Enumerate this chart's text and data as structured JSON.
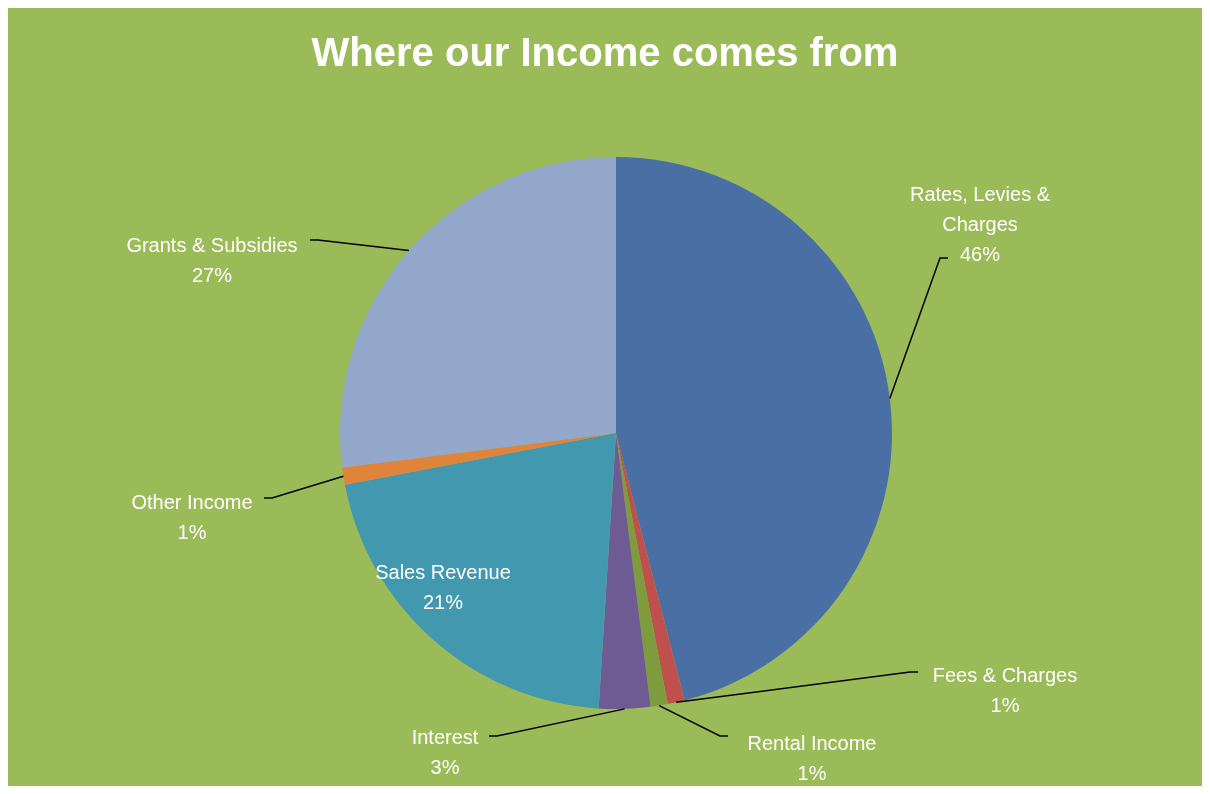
{
  "chart_data": {
    "type": "pie",
    "title": "Where our Income comes from",
    "categories": [
      "Rates, Levies & Charges",
      "Fees & Charges",
      "Rental Income",
      "Interest",
      "Sales Revenue",
      "Other Income",
      "Grants & Subsidies"
    ],
    "values": [
      46,
      1,
      1,
      3,
      21,
      1,
      27
    ],
    "value_labels": [
      "46%",
      "1%",
      "1%",
      "3%",
      "21%",
      "1%",
      "27%"
    ],
    "colors": [
      "#4a6fa5",
      "#c0504d",
      "#7e9c3e",
      "#6f5b93",
      "#4298ae",
      "#e0843c",
      "#94a8cc"
    ]
  }
}
